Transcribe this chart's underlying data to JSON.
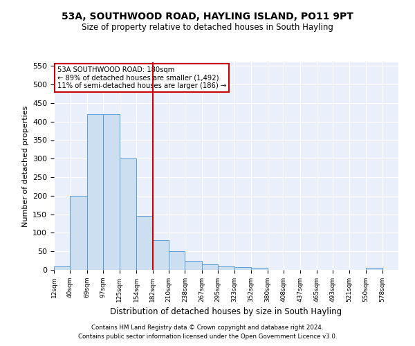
{
  "title": "53A, SOUTHWOOD ROAD, HAYLING ISLAND, PO11 9PT",
  "subtitle": "Size of property relative to detached houses in South Hayling",
  "xlabel": "Distribution of detached houses by size in South Hayling",
  "ylabel": "Number of detached properties",
  "footnote1": "Contains HM Land Registry data © Crown copyright and database right 2024.",
  "footnote2": "Contains public sector information licensed under the Open Government Licence v3.0.",
  "annotation_line1": "53A SOUTHWOOD ROAD: 180sqm",
  "annotation_line2": "← 89% of detached houses are smaller (1,492)",
  "annotation_line3": "11% of semi-detached houses are larger (186) →",
  "bar_color": "#ccdff0",
  "bar_edge_color": "#5b9bd5",
  "vline_color": "#cc0000",
  "vline_x": 182,
  "categories": [
    "12sqm",
    "40sqm",
    "69sqm",
    "97sqm",
    "125sqm",
    "154sqm",
    "182sqm",
    "210sqm",
    "238sqm",
    "267sqm",
    "295sqm",
    "323sqm",
    "352sqm",
    "380sqm",
    "408sqm",
    "437sqm",
    "465sqm",
    "493sqm",
    "521sqm",
    "550sqm",
    "578sqm"
  ],
  "bin_edges": [
    12,
    40,
    69,
    97,
    125,
    154,
    182,
    210,
    238,
    267,
    295,
    323,
    352,
    380,
    408,
    437,
    465,
    493,
    521,
    550,
    578,
    606
  ],
  "values": [
    10,
    200,
    420,
    420,
    300,
    145,
    80,
    50,
    25,
    15,
    10,
    8,
    5,
    0,
    0,
    0,
    0,
    0,
    0,
    5,
    0
  ],
  "ylim": [
    0,
    560
  ],
  "yticks": [
    0,
    50,
    100,
    150,
    200,
    250,
    300,
    350,
    400,
    450,
    500,
    550
  ],
  "bg_color": "#eaf0fb",
  "grid_color": "#ffffff"
}
